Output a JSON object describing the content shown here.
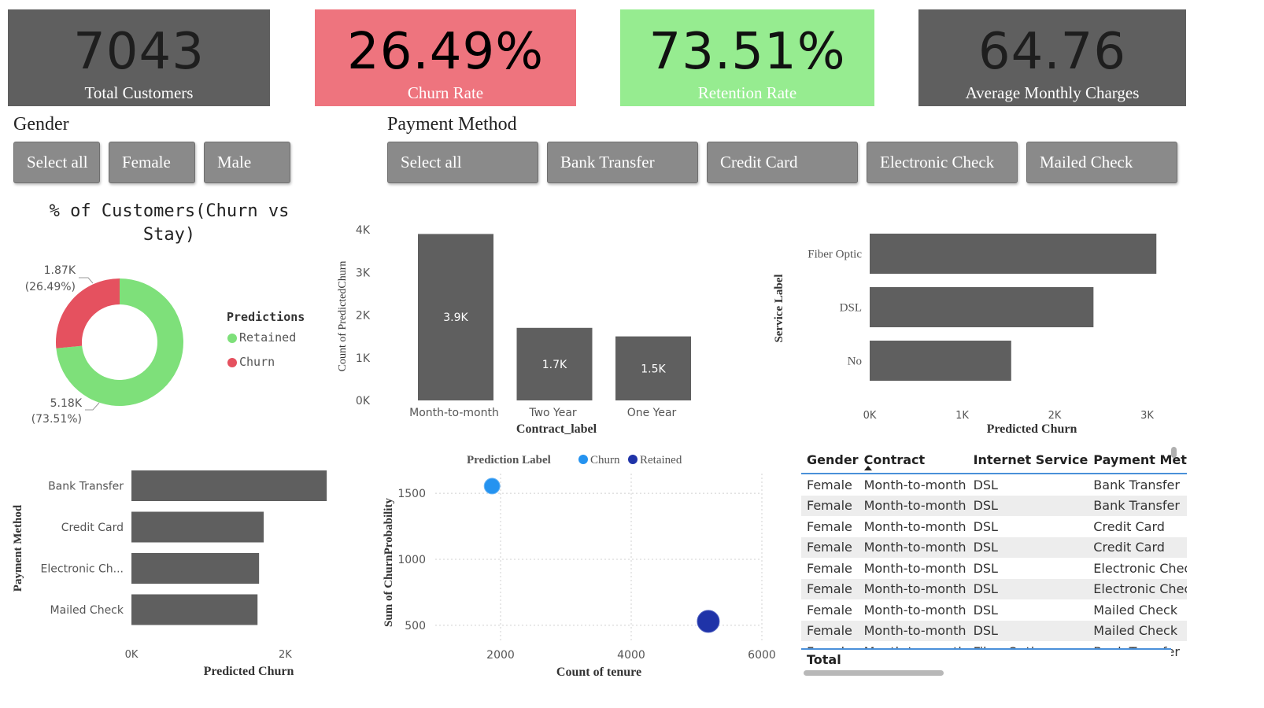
{
  "kpis": {
    "total_customers": {
      "value": "7043",
      "label": "Total Customers",
      "bg": "#5f5f5f",
      "fg": "#1e1e1e",
      "label_fg": "#ffffff"
    },
    "churn_rate": {
      "value": "26.49%",
      "label": "Churn Rate",
      "bg": "#ee747e",
      "fg": "#000000",
      "label_fg": "#ffffff"
    },
    "retention_rate": {
      "value": "73.51%",
      "label": "Retention Rate",
      "bg": "#96ec90",
      "fg": "#111111",
      "label_fg": "#ffffff"
    },
    "avg_monthly": {
      "value": "64.76",
      "label": "Average Monthly Charges",
      "bg": "#5f5f5f",
      "fg": "#1e1e1e",
      "label_fg": "#ffffff"
    }
  },
  "slicers": {
    "gender": {
      "title": "Gender",
      "options": [
        "Select all",
        "Female",
        "Male"
      ]
    },
    "payment": {
      "title": "Payment Method",
      "options": [
        "Select all",
        "Bank Transfer",
        "Credit Card",
        "Electronic Check",
        "Mailed Check"
      ]
    }
  },
  "colors": {
    "bar": "#5f5f5f",
    "retained": "#7ee07a",
    "churn": "#e5515f",
    "churn_dot": "#2593f0",
    "retained_dot": "#1f33a8",
    "table_accent": "#4a90d9"
  },
  "chart_data": [
    {
      "id": "donut",
      "type": "pie",
      "title": "% of Customers(Churn vs Stay)",
      "legend_title": "Predictions",
      "legend_position": "right",
      "slices": [
        {
          "name": "Retained",
          "value": 5180,
          "label": "5.18K",
          "pct": "(73.51%)",
          "color": "#7ee07a"
        },
        {
          "name": "Churn",
          "value": 1870,
          "label": "1.87K",
          "pct": "(26.49%)",
          "color": "#e5515f"
        }
      ]
    },
    {
      "id": "contract",
      "type": "bar",
      "xlabel": "Contract_label",
      "ylabel": "Count of PredictedChurn",
      "categories": [
        "Month-to-month",
        "Two Year",
        "One Year"
      ],
      "values": [
        3900,
        1700,
        1500
      ],
      "value_labels": [
        "3.9K",
        "1.7K",
        "1.5K"
      ],
      "ylim": [
        0,
        4000
      ],
      "yticks": [
        0,
        1000,
        2000,
        3000,
        4000
      ],
      "ytick_labels": [
        "0K",
        "1K",
        "2K",
        "3K",
        "4K"
      ]
    },
    {
      "id": "service",
      "type": "bar",
      "orientation": "horizontal",
      "xlabel": "Predicted Churn",
      "ylabel": "Service Label",
      "categories": [
        "Fiber Optic",
        "DSL",
        "No"
      ],
      "values": [
        3100,
        2420,
        1530
      ],
      "xlim": [
        0,
        3200
      ],
      "xticks": [
        0,
        1000,
        2000,
        3000
      ],
      "xtick_labels": [
        "0K",
        "1K",
        "2K",
        "3K"
      ]
    },
    {
      "id": "payment",
      "type": "bar",
      "orientation": "horizontal",
      "xlabel": "Predicted Churn",
      "ylabel": "Payment Method",
      "categories": [
        "Bank Transfer",
        "Credit Card",
        "Electronic Ch...",
        "Mailed Check"
      ],
      "values": [
        2540,
        1720,
        1660,
        1640
      ],
      "xlim": [
        0,
        2600
      ],
      "xticks": [
        0,
        2000
      ],
      "xtick_labels": [
        "0K",
        "2K"
      ]
    },
    {
      "id": "scatter",
      "type": "scatter",
      "legend_title": "Prediction Label",
      "legend_position": "top",
      "xlabel": "Count of tenure",
      "ylabel": "Sum of ChurnProbability",
      "xlim": [
        1000,
        6000
      ],
      "ylim": [
        380,
        1650
      ],
      "xticks": [
        2000,
        4000,
        6000
      ],
      "yticks": [
        500,
        1000,
        1500
      ],
      "grid": true,
      "series": [
        {
          "name": "Churn",
          "x": [
            1870
          ],
          "y": [
            1555
          ],
          "color": "#2593f0"
        },
        {
          "name": "Retained",
          "x": [
            5180
          ],
          "y": [
            530
          ],
          "color": "#1f33a8"
        }
      ]
    }
  ],
  "table": {
    "columns": [
      "Gender",
      "Contract",
      "Internet Service",
      "Payment Meth"
    ],
    "rows": [
      [
        "Female",
        "Month-to-month",
        "DSL",
        "Bank Transfer"
      ],
      [
        "Female",
        "Month-to-month",
        "DSL",
        "Bank Transfer"
      ],
      [
        "Female",
        "Month-to-month",
        "DSL",
        "Credit Card"
      ],
      [
        "Female",
        "Month-to-month",
        "DSL",
        "Credit Card"
      ],
      [
        "Female",
        "Month-to-month",
        "DSL",
        "Electronic Check"
      ],
      [
        "Female",
        "Month-to-month",
        "DSL",
        "Electronic Check"
      ],
      [
        "Female",
        "Month-to-month",
        "DSL",
        "Mailed Check"
      ],
      [
        "Female",
        "Month-to-month",
        "DSL",
        "Mailed Check"
      ],
      [
        "Female",
        "Month-to-month",
        "Fiber Optic",
        "Bank Transfer"
      ]
    ],
    "total_label": "Total"
  }
}
